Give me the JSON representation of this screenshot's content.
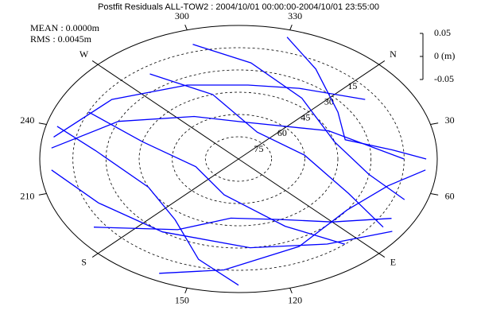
{
  "chart_data": {
    "type": "skyplot",
    "title": "Postfit Residuals ALL-TOW2 : 2004/10/01 00:00:00-2004/10/01 23:55:00",
    "annotations": [
      "MEAN : 0.0000m",
      "RMS : 0.0045m"
    ],
    "azimuth_ticks": [
      {
        "value": 0,
        "label": "N"
      },
      30,
      60,
      {
        "value": 90,
        "label": "E"
      },
      120,
      150,
      {
        "value": 180,
        "label": "S"
      },
      210,
      240,
      {
        "value": 270,
        "label": "W"
      },
      300,
      330
    ],
    "elevation_lim": [
      0,
      90
    ],
    "elevation_ticks": [
      15,
      30,
      45,
      60,
      75
    ],
    "residual_lim": [
      -0.05,
      0.05
    ],
    "residual_ticks": [
      0.05,
      {
        "value": 0,
        "label": "0 (m)"
      },
      -0.05
    ],
    "series": [
      {
        "color": "#0000ff",
        "azimuth": [
          235,
          260,
          290,
          320,
          345,
          10
        ],
        "elevation": [
          5,
          20,
          35,
          40,
          35,
          20
        ]
      },
      {
        "color": "#0000ff",
        "azimuth": [
          230,
          250,
          280,
          320,
          20,
          45
        ],
        "elevation": [
          5,
          30,
          55,
          65,
          45,
          15
        ]
      },
      {
        "color": "#0000ff",
        "azimuth": [
          240,
          230,
          200,
          170,
          150,
          135
        ],
        "elevation": [
          5,
          25,
          45,
          40,
          20,
          5
        ]
      },
      {
        "color": "#0000ff",
        "azimuth": [
          220,
          200,
          170,
          130,
          100,
          80
        ],
        "elevation": [
          5,
          20,
          30,
          30,
          20,
          5
        ]
      },
      {
        "color": "#0000ff",
        "azimuth": [
          300,
          320,
          350,
          30,
          55,
          65
        ],
        "elevation": [
          10,
          25,
          40,
          45,
          30,
          10
        ]
      },
      {
        "color": "#0000ff",
        "azimuth": [
          190,
          165,
          140,
          110,
          90,
          75
        ],
        "elevation": [
          10,
          35,
          50,
          45,
          30,
          10
        ]
      },
      {
        "color": "#0000ff",
        "azimuth": [
          280,
          300,
          340,
          40,
          70,
          80
        ],
        "elevation": [
          20,
          45,
          70,
          60,
          35,
          10
        ]
      },
      {
        "color": "#0000ff",
        "azimuth": [
          160,
          140,
          110,
          80,
          60,
          50
        ],
        "elevation": [
          5,
          15,
          25,
          30,
          20,
          5
        ]
      },
      {
        "color": "#0000ff",
        "azimuth": [
          250,
          240,
          210,
          150,
          110,
          95
        ],
        "elevation": [
          15,
          45,
          70,
          65,
          40,
          15
        ]
      },
      {
        "color": "#0000ff",
        "azimuth": [
          330,
          345,
          10,
          30,
          40,
          45
        ],
        "elevation": [
          5,
          20,
          35,
          40,
          20,
          5
        ]
      }
    ]
  }
}
